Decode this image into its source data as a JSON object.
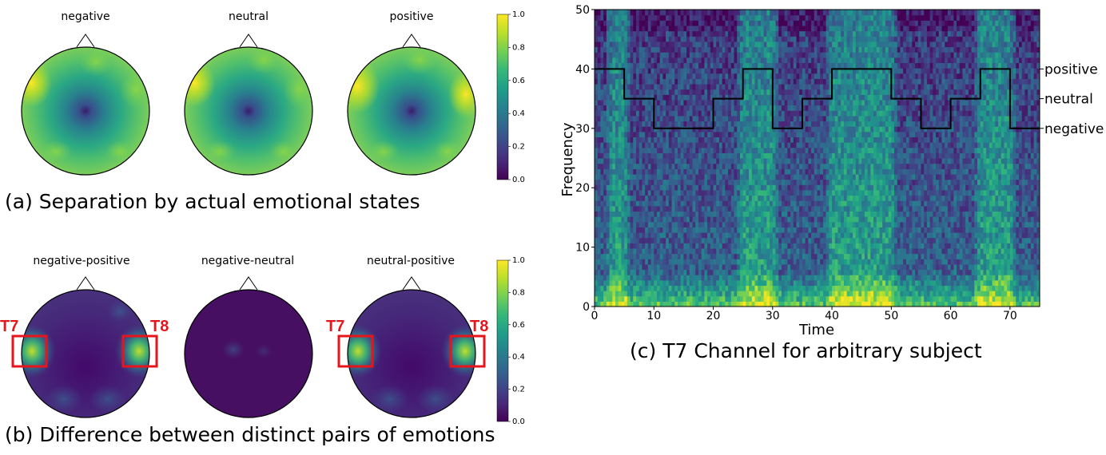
{
  "colors": {
    "viridis": [
      "#440154",
      "#482878",
      "#3e4989",
      "#31688e",
      "#26828e",
      "#1f9e89",
      "#35b779",
      "#6ece58",
      "#b5de2b",
      "#fde725"
    ],
    "highlight": "#e8141c",
    "step_line": "#000000"
  },
  "captions": {
    "a": "(a) Separation by actual emotional states",
    "b": "(b) Difference between distinct pairs of emotions",
    "c": "(c) T7 Channel for arbitrary subject"
  },
  "colorbar_ticks": [
    "0.0",
    "0.2",
    "0.4",
    "0.6",
    "0.8",
    "1.0"
  ],
  "chart_data": [
    {
      "type": "heatmap",
      "panel": "a",
      "subplots": [
        {
          "title": "negative",
          "center": 0.0,
          "base": 0.72,
          "hotspot": 1.0
        },
        {
          "title": "neutral",
          "center": 0.0,
          "base": 0.74,
          "hotspot": 1.0
        },
        {
          "title": "positive",
          "center": 0.0,
          "base": 0.76,
          "hotspot": 1.0
        }
      ],
      "colorbar": {
        "ylim": [
          0.0,
          1.0
        ],
        "ticks": [
          0.0,
          0.2,
          0.4,
          0.6,
          0.8,
          1.0
        ]
      }
    },
    {
      "type": "heatmap",
      "panel": "b",
      "subplots": [
        {
          "title": "negative-positive",
          "marked_channels": [
            "T7",
            "T8"
          ],
          "peak": 0.9
        },
        {
          "title": "negative-neutral",
          "marked_channels": [],
          "peak": 0.2
        },
        {
          "title": "neutral-positive",
          "marked_channels": [
            "T7",
            "T8"
          ],
          "peak": 0.9
        }
      ],
      "colorbar": {
        "ylim": [
          0.0,
          1.0
        ],
        "ticks": [
          0.0,
          0.2,
          0.4,
          0.6,
          0.8,
          1.0
        ]
      }
    },
    {
      "type": "heatmap",
      "panel": "c",
      "xlabel": "Time",
      "ylabel": "Frequency",
      "xlim": [
        0,
        75
      ],
      "ylim": [
        0,
        50
      ],
      "xticks": [
        0,
        10,
        20,
        30,
        40,
        50,
        60,
        70
      ],
      "yticks": [
        0,
        10,
        20,
        30,
        40,
        50
      ],
      "bright_time_bands": [
        [
          3,
          5
        ],
        [
          25,
          30
        ],
        [
          40,
          50
        ],
        [
          65,
          70
        ]
      ],
      "label_series": {
        "levels": {
          "positive": 40,
          "neutral": 35,
          "negative": 30
        },
        "steps": [
          {
            "start": 0,
            "end": 5,
            "label": "positive"
          },
          {
            "start": 5,
            "end": 10,
            "label": "neutral"
          },
          {
            "start": 10,
            "end": 20,
            "label": "negative"
          },
          {
            "start": 20,
            "end": 25,
            "label": "neutral"
          },
          {
            "start": 25,
            "end": 30,
            "label": "positive"
          },
          {
            "start": 30,
            "end": 35,
            "label": "negative"
          },
          {
            "start": 35,
            "end": 40,
            "label": "neutral"
          },
          {
            "start": 40,
            "end": 50,
            "label": "positive"
          },
          {
            "start": 50,
            "end": 55,
            "label": "neutral"
          },
          {
            "start": 55,
            "end": 60,
            "label": "negative"
          },
          {
            "start": 60,
            "end": 65,
            "label": "neutral"
          },
          {
            "start": 65,
            "end": 70,
            "label": "positive"
          },
          {
            "start": 70,
            "end": 75,
            "label": "negative"
          }
        ]
      }
    }
  ]
}
